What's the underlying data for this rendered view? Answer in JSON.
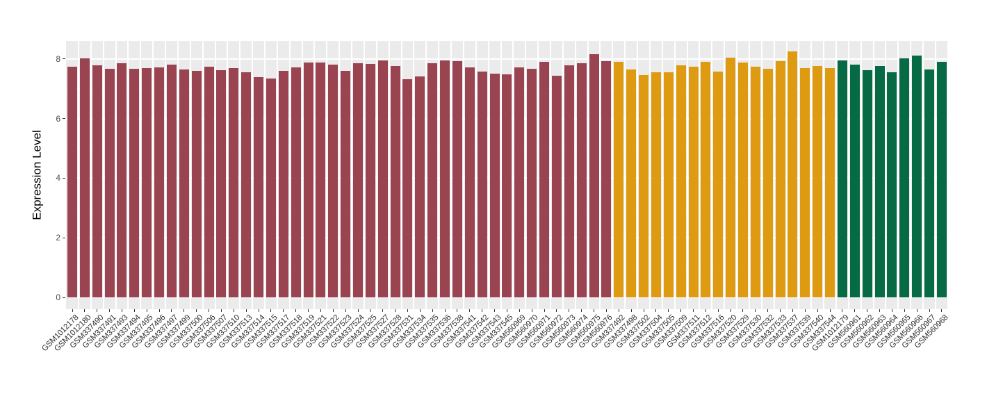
{
  "chart_data": {
    "type": "bar",
    "title": "",
    "xlabel": "",
    "ylabel": "Expression Level",
    "ylim": [
      0,
      8.6
    ],
    "yticks": [
      0,
      2,
      4,
      6,
      8
    ],
    "grid": "ggplot-gray-panel-white-gridlines",
    "legend": false,
    "panel_background": "#EBEBEB",
    "group_colors": {
      "group1": "#9A4452",
      "group2": "#DE9B12",
      "group3": "#066B45"
    },
    "bars": [
      {
        "label": "GSM1012178",
        "value": 7.73,
        "group": "group1"
      },
      {
        "label": "GSM1012180",
        "value": 8.02,
        "group": "group1"
      },
      {
        "label": "GSM337490",
        "value": 7.79,
        "group": "group1"
      },
      {
        "label": "GSM337491",
        "value": 7.66,
        "group": "group1"
      },
      {
        "label": "GSM337493",
        "value": 7.85,
        "group": "group1"
      },
      {
        "label": "GSM337494",
        "value": 7.68,
        "group": "group1"
      },
      {
        "label": "GSM337495",
        "value": 7.69,
        "group": "group1"
      },
      {
        "label": "GSM337496",
        "value": 7.72,
        "group": "group1"
      },
      {
        "label": "GSM337497",
        "value": 7.82,
        "group": "group1"
      },
      {
        "label": "GSM337499",
        "value": 7.65,
        "group": "group1"
      },
      {
        "label": "GSM337500",
        "value": 7.6,
        "group": "group1"
      },
      {
        "label": "GSM337506",
        "value": 7.73,
        "group": "group1"
      },
      {
        "label": "GSM337507",
        "value": 7.62,
        "group": "group1"
      },
      {
        "label": "GSM337510",
        "value": 7.69,
        "group": "group1"
      },
      {
        "label": "GSM337513",
        "value": 7.55,
        "group": "group1"
      },
      {
        "label": "GSM337514",
        "value": 7.38,
        "group": "group1"
      },
      {
        "label": "GSM337515",
        "value": 7.34,
        "group": "group1"
      },
      {
        "label": "GSM337517",
        "value": 7.61,
        "group": "group1"
      },
      {
        "label": "GSM337518",
        "value": 7.71,
        "group": "group1"
      },
      {
        "label": "GSM337519",
        "value": 7.88,
        "group": "group1"
      },
      {
        "label": "GSM337521",
        "value": 7.89,
        "group": "group1"
      },
      {
        "label": "GSM337522",
        "value": 7.8,
        "group": "group1"
      },
      {
        "label": "GSM337523",
        "value": 7.61,
        "group": "group1"
      },
      {
        "label": "GSM337524",
        "value": 7.86,
        "group": "group1"
      },
      {
        "label": "GSM337525",
        "value": 7.83,
        "group": "group1"
      },
      {
        "label": "GSM337527",
        "value": 7.96,
        "group": "group1"
      },
      {
        "label": "GSM337528",
        "value": 7.77,
        "group": "group1"
      },
      {
        "label": "GSM337531",
        "value": 7.32,
        "group": "group1"
      },
      {
        "label": "GSM337534",
        "value": 7.42,
        "group": "group1"
      },
      {
        "label": "GSM337535",
        "value": 7.86,
        "group": "group1"
      },
      {
        "label": "GSM337536",
        "value": 7.96,
        "group": "group1"
      },
      {
        "label": "GSM337538",
        "value": 7.93,
        "group": "group1"
      },
      {
        "label": "GSM337541",
        "value": 7.72,
        "group": "group1"
      },
      {
        "label": "GSM337542",
        "value": 7.57,
        "group": "group1"
      },
      {
        "label": "GSM337543",
        "value": 7.51,
        "group": "group1"
      },
      {
        "label": "GSM337545",
        "value": 7.49,
        "group": "group1"
      },
      {
        "label": "GSM560969",
        "value": 7.71,
        "group": "group1"
      },
      {
        "label": "GSM560970",
        "value": 7.66,
        "group": "group1"
      },
      {
        "label": "GSM560971",
        "value": 7.9,
        "group": "group1"
      },
      {
        "label": "GSM560972",
        "value": 7.44,
        "group": "group1"
      },
      {
        "label": "GSM560973",
        "value": 7.79,
        "group": "group1"
      },
      {
        "label": "GSM560974",
        "value": 7.86,
        "group": "group1"
      },
      {
        "label": "GSM560975",
        "value": 8.16,
        "group": "group1"
      },
      {
        "label": "GSM560976",
        "value": 7.93,
        "group": "group1"
      },
      {
        "label": "GSM337492",
        "value": 7.9,
        "group": "group2"
      },
      {
        "label": "GSM337498",
        "value": 7.65,
        "group": "group2"
      },
      {
        "label": "GSM337502",
        "value": 7.46,
        "group": "group2"
      },
      {
        "label": "GSM337504",
        "value": 7.55,
        "group": "group2"
      },
      {
        "label": "GSM337505",
        "value": 7.55,
        "group": "group2"
      },
      {
        "label": "GSM337509",
        "value": 7.79,
        "group": "group2"
      },
      {
        "label": "GSM337511",
        "value": 7.74,
        "group": "group2"
      },
      {
        "label": "GSM337512",
        "value": 7.91,
        "group": "group2"
      },
      {
        "label": "GSM337516",
        "value": 7.58,
        "group": "group2"
      },
      {
        "label": "GSM337520",
        "value": 8.04,
        "group": "group2"
      },
      {
        "label": "GSM337529",
        "value": 7.87,
        "group": "group2"
      },
      {
        "label": "GSM337530",
        "value": 7.75,
        "group": "group2"
      },
      {
        "label": "GSM337532",
        "value": 7.67,
        "group": "group2"
      },
      {
        "label": "GSM337533",
        "value": 7.93,
        "group": "group2"
      },
      {
        "label": "GSM337537",
        "value": 8.26,
        "group": "group2"
      },
      {
        "label": "GSM337539",
        "value": 7.7,
        "group": "group2"
      },
      {
        "label": "GSM337540",
        "value": 7.77,
        "group": "group2"
      },
      {
        "label": "GSM337544",
        "value": 7.69,
        "group": "group2"
      },
      {
        "label": "GSM1012179",
        "value": 7.94,
        "group": "group3"
      },
      {
        "label": "GSM560961",
        "value": 7.82,
        "group": "group3"
      },
      {
        "label": "GSM560962",
        "value": 7.63,
        "group": "group3"
      },
      {
        "label": "GSM560963",
        "value": 7.76,
        "group": "group3"
      },
      {
        "label": "GSM560964",
        "value": 7.55,
        "group": "group3"
      },
      {
        "label": "GSM560965",
        "value": 8.03,
        "group": "group3"
      },
      {
        "label": "GSM560966",
        "value": 8.11,
        "group": "group3"
      },
      {
        "label": "GSM560967",
        "value": 7.65,
        "group": "group3"
      },
      {
        "label": "GSM560968",
        "value": 7.9,
        "group": "group3"
      }
    ]
  }
}
